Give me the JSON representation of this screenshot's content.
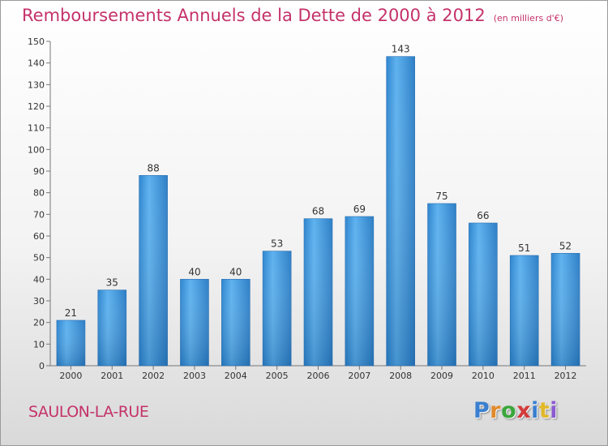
{
  "title": "Remboursements Annuels de la Dette de 2000 à 2012",
  "subtitle": "(en milliers d'€)",
  "town": "SAULON-LA-RUE",
  "logo": {
    "letters": [
      "P",
      "r",
      "o",
      "x",
      "i",
      "t",
      "i"
    ],
    "colors": [
      "#3a7fd0",
      "#e08a2a",
      "#3aa63a",
      "#d43a3a",
      "#3a7fd0",
      "#e0b82a",
      "#8a5ad0"
    ]
  },
  "colors": {
    "bar": "#3f94d8",
    "bar_light": "#5fb0ec",
    "bar_dark": "#2a78c0",
    "accent": "#c4326a"
  },
  "chart_data": {
    "type": "bar",
    "categories": [
      "2000",
      "2001",
      "2002",
      "2003",
      "2004",
      "2005",
      "2006",
      "2007",
      "2008",
      "2009",
      "2010",
      "2011",
      "2012"
    ],
    "values": [
      21,
      35,
      88,
      40,
      40,
      53,
      68,
      69,
      143,
      75,
      66,
      51,
      52
    ],
    "title": "Remboursements Annuels de la Dette de 2000 à 2012",
    "subtitle": "(en milliers d'€)",
    "xlabel": "",
    "ylabel": "",
    "ylim": [
      0,
      150
    ],
    "yticks": [
      0,
      10,
      20,
      30,
      40,
      50,
      60,
      70,
      80,
      90,
      100,
      110,
      120,
      130,
      140,
      150
    ],
    "grid": false,
    "legend": "none"
  }
}
